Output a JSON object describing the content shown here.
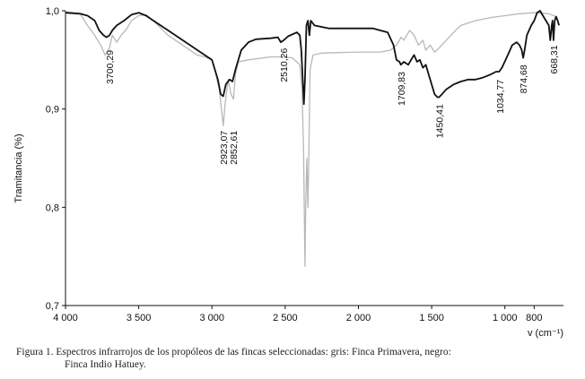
{
  "chart_data": {
    "type": "line",
    "xlabel": "v (cm⁻¹)",
    "ylabel": "Tramitancia (%)",
    "xlim": [
      4000,
      600
    ],
    "ylim": [
      0.7,
      1.0
    ],
    "x_ticks": [
      "4 000",
      "3 500",
      "3 000",
      "2 500",
      "2 000",
      "1 500",
      "1 000"
    ],
    "x_tick_values": [
      4000,
      3500,
      3000,
      2500,
      2000,
      1500,
      1000
    ],
    "extra_x_ticks": [
      {
        "label": "800",
        "value": 800
      }
    ],
    "y_ticks": [
      "1,0",
      "0,9",
      "0,8",
      "0,7"
    ],
    "y_tick_values": [
      1.0,
      0.9,
      0.8,
      0.7
    ],
    "grid": false,
    "series": [
      {
        "color": "#b8b8b8",
        "points": [
          [
            4000,
            0.999
          ],
          [
            3900,
            0.997
          ],
          [
            3850,
            0.985
          ],
          [
            3800,
            0.975
          ],
          [
            3760,
            0.965
          ],
          [
            3730,
            0.955
          ],
          [
            3700,
            0.962
          ],
          [
            3680,
            0.975
          ],
          [
            3650,
            0.968
          ],
          [
            3620,
            0.975
          ],
          [
            3580,
            0.982
          ],
          [
            3550,
            0.99
          ],
          [
            3500,
            0.995
          ],
          [
            3450,
            0.996
          ],
          [
            3400,
            0.99
          ],
          [
            3300,
            0.975
          ],
          [
            3200,
            0.965
          ],
          [
            3100,
            0.955
          ],
          [
            3050,
            0.953
          ],
          [
            3000,
            0.95
          ],
          [
            2980,
            0.94
          ],
          [
            2950,
            0.92
          ],
          [
            2935,
            0.9
          ],
          [
            2923,
            0.883
          ],
          [
            2910,
            0.905
          ],
          [
            2890,
            0.93
          ],
          [
            2870,
            0.915
          ],
          [
            2853,
            0.91
          ],
          [
            2840,
            0.935
          ],
          [
            2820,
            0.948
          ],
          [
            2750,
            0.95
          ],
          [
            2600,
            0.953
          ],
          [
            2510,
            0.953
          ],
          [
            2450,
            0.952
          ],
          [
            2400,
            0.945
          ],
          [
            2385,
            0.92
          ],
          [
            2375,
            0.86
          ],
          [
            2365,
            0.74
          ],
          [
            2360,
            0.8
          ],
          [
            2352,
            0.85
          ],
          [
            2345,
            0.8
          ],
          [
            2338,
            0.86
          ],
          [
            2330,
            0.94
          ],
          [
            2310,
            0.955
          ],
          [
            2250,
            0.957
          ],
          [
            2000,
            0.958
          ],
          [
            1850,
            0.958
          ],
          [
            1780,
            0.96
          ],
          [
            1740,
            0.965
          ],
          [
            1720,
            0.97
          ],
          [
            1710,
            0.973
          ],
          [
            1690,
            0.97
          ],
          [
            1650,
            0.98
          ],
          [
            1620,
            0.975
          ],
          [
            1590,
            0.965
          ],
          [
            1560,
            0.97
          ],
          [
            1540,
            0.96
          ],
          [
            1510,
            0.965
          ],
          [
            1480,
            0.958
          ],
          [
            1450,
            0.962
          ],
          [
            1400,
            0.97
          ],
          [
            1350,
            0.978
          ],
          [
            1300,
            0.985
          ],
          [
            1200,
            0.99
          ],
          [
            1100,
            0.993
          ],
          [
            1000,
            0.995
          ],
          [
            900,
            0.997
          ],
          [
            800,
            0.998
          ],
          [
            700,
            0.997
          ],
          [
            650,
            0.994
          ]
        ]
      },
      {
        "color": "#111111",
        "points": [
          [
            4000,
            0.998
          ],
          [
            3900,
            0.997
          ],
          [
            3850,
            0.995
          ],
          [
            3800,
            0.99
          ],
          [
            3770,
            0.98
          ],
          [
            3740,
            0.975
          ],
          [
            3720,
            0.973
          ],
          [
            3700,
            0.975
          ],
          [
            3680,
            0.98
          ],
          [
            3650,
            0.985
          ],
          [
            3600,
            0.99
          ],
          [
            3550,
            0.996
          ],
          [
            3500,
            0.998
          ],
          [
            3450,
            0.995
          ],
          [
            3400,
            0.99
          ],
          [
            3300,
            0.98
          ],
          [
            3200,
            0.97
          ],
          [
            3150,
            0.965
          ],
          [
            3100,
            0.96
          ],
          [
            3050,
            0.955
          ],
          [
            3000,
            0.95
          ],
          [
            2980,
            0.94
          ],
          [
            2960,
            0.93
          ],
          [
            2940,
            0.915
          ],
          [
            2923,
            0.913
          ],
          [
            2905,
            0.925
          ],
          [
            2880,
            0.93
          ],
          [
            2860,
            0.928
          ],
          [
            2840,
            0.94
          ],
          [
            2800,
            0.96
          ],
          [
            2750,
            0.968
          ],
          [
            2700,
            0.971
          ],
          [
            2600,
            0.972
          ],
          [
            2550,
            0.973
          ],
          [
            2530,
            0.968
          ],
          [
            2510,
            0.97
          ],
          [
            2480,
            0.974
          ],
          [
            2420,
            0.978
          ],
          [
            2400,
            0.975
          ],
          [
            2390,
            0.96
          ],
          [
            2380,
            0.93
          ],
          [
            2372,
            0.905
          ],
          [
            2365,
            0.93
          ],
          [
            2355,
            0.985
          ],
          [
            2345,
            0.99
          ],
          [
            2335,
            0.975
          ],
          [
            2325,
            0.99
          ],
          [
            2300,
            0.985
          ],
          [
            2200,
            0.982
          ],
          [
            2100,
            0.982
          ],
          [
            2000,
            0.982
          ],
          [
            1900,
            0.982
          ],
          [
            1800,
            0.978
          ],
          [
            1760,
            0.965
          ],
          [
            1740,
            0.95
          ],
          [
            1720,
            0.948
          ],
          [
            1710,
            0.945
          ],
          [
            1690,
            0.948
          ],
          [
            1660,
            0.945
          ],
          [
            1640,
            0.95
          ],
          [
            1620,
            0.955
          ],
          [
            1600,
            0.948
          ],
          [
            1580,
            0.95
          ],
          [
            1560,
            0.942
          ],
          [
            1540,
            0.945
          ],
          [
            1520,
            0.935
          ],
          [
            1500,
            0.925
          ],
          [
            1480,
            0.915
          ],
          [
            1460,
            0.912
          ],
          [
            1450,
            0.912
          ],
          [
            1430,
            0.915
          ],
          [
            1400,
            0.92
          ],
          [
            1350,
            0.925
          ],
          [
            1300,
            0.928
          ],
          [
            1250,
            0.93
          ],
          [
            1200,
            0.93
          ],
          [
            1150,
            0.932
          ],
          [
            1100,
            0.935
          ],
          [
            1060,
            0.938
          ],
          [
            1040,
            0.938
          ],
          [
            1020,
            0.942
          ],
          [
            980,
            0.955
          ],
          [
            950,
            0.965
          ],
          [
            920,
            0.968
          ],
          [
            900,
            0.965
          ],
          [
            885,
            0.96
          ],
          [
            875,
            0.952
          ],
          [
            865,
            0.96
          ],
          [
            850,
            0.975
          ],
          [
            820,
            0.985
          ],
          [
            800,
            0.99
          ],
          [
            780,
            0.998
          ],
          [
            760,
            1.0
          ],
          [
            740,
            0.995
          ],
          [
            720,
            0.99
          ],
          [
            700,
            0.985
          ],
          [
            690,
            0.97
          ],
          [
            680,
            0.985
          ],
          [
            675,
            0.99
          ],
          [
            668,
            0.97
          ],
          [
            660,
            0.99
          ],
          [
            650,
            0.994
          ],
          [
            640,
            0.99
          ],
          [
            630,
            0.985
          ]
        ]
      }
    ],
    "annotations": [
      {
        "label": "3700,29",
        "x": 3700,
        "y": 0.96
      },
      {
        "label": "2923,07",
        "x": 2923,
        "y": 0.878
      },
      {
        "label": "2852,61",
        "x": 2853,
        "y": 0.878
      },
      {
        "label": "2510,26",
        "x": 2510,
        "y": 0.962
      },
      {
        "label": "1709,83",
        "x": 1710,
        "y": 0.938
      },
      {
        "label": "1450,41",
        "x": 1450,
        "y": 0.905
      },
      {
        "label": "1034,77",
        "x": 1035,
        "y": 0.93
      },
      {
        "label": "874,68",
        "x": 875,
        "y": 0.945
      },
      {
        "label": "668,31",
        "x": 668,
        "y": 0.965
      }
    ]
  },
  "caption": {
    "line1": "Figura 1. Espectros infrarrojos de los propóleos de las fincas seleccionadas: gris: Finca Primavera, negro:",
    "line2": "Finca Indio Hatuey."
  }
}
